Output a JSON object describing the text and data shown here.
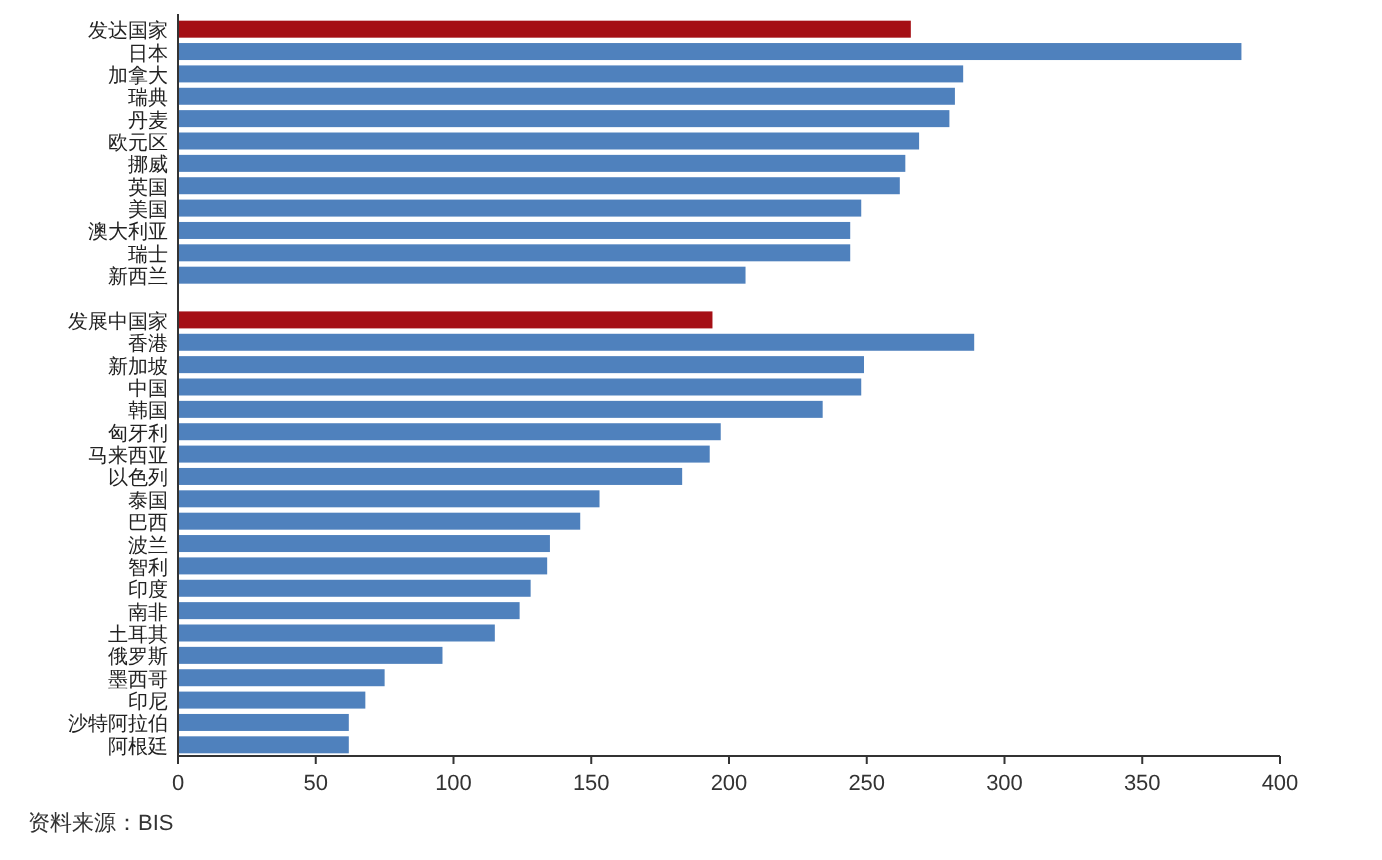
{
  "chart_data": {
    "type": "bar",
    "orientation": "horizontal",
    "categories": [
      "发达国家",
      "日本",
      "加拿大",
      "瑞典",
      "丹麦",
      "欧元区",
      "挪威",
      "英国",
      "美国",
      "澳大利亚",
      "瑞士",
      "新西兰",
      null,
      "发展中国家",
      "香港",
      "新加坡",
      "中国",
      "韩国",
      "匈牙利",
      "马来西亚",
      "以色列",
      "泰国",
      "巴西",
      "波兰",
      "智利",
      "印度",
      "南非",
      "土耳其",
      "俄罗斯",
      "墨西哥",
      "印尼",
      "沙特阿拉伯",
      "阿根廷"
    ],
    "values": [
      266,
      386,
      285,
      282,
      280,
      269,
      264,
      262,
      248,
      244,
      244,
      206,
      null,
      194,
      289,
      249,
      248,
      234,
      197,
      193,
      183,
      153,
      146,
      135,
      134,
      128,
      124,
      115,
      96,
      75,
      68,
      62,
      62
    ],
    "colors": [
      "#a50f15",
      "#4f81bd",
      "#4f81bd",
      "#4f81bd",
      "#4f81bd",
      "#4f81bd",
      "#4f81bd",
      "#4f81bd",
      "#4f81bd",
      "#4f81bd",
      "#4f81bd",
      "#4f81bd",
      null,
      "#a50f15",
      "#4f81bd",
      "#4f81bd",
      "#4f81bd",
      "#4f81bd",
      "#4f81bd",
      "#4f81bd",
      "#4f81bd",
      "#4f81bd",
      "#4f81bd",
      "#4f81bd",
      "#4f81bd",
      "#4f81bd",
      "#4f81bd",
      "#4f81bd",
      "#4f81bd",
      "#4f81bd",
      "#4f81bd",
      "#4f81bd",
      "#4f81bd"
    ],
    "xlim": [
      0,
      400
    ],
    "xticks": [
      0,
      50,
      100,
      150,
      200,
      250,
      300,
      350,
      400
    ],
    "annotations": [
      "资料来源：BIS"
    ]
  }
}
